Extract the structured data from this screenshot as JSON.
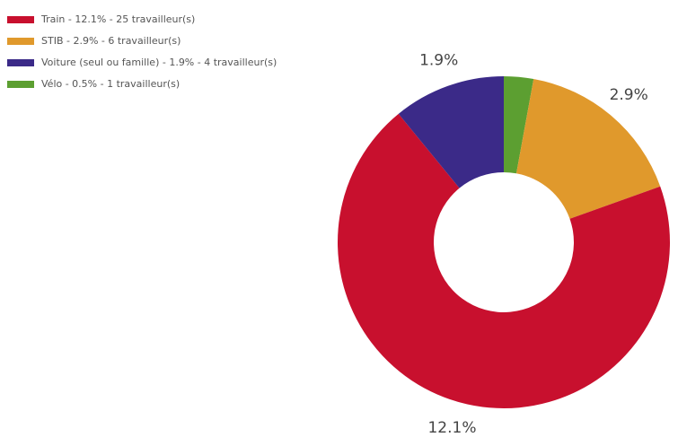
{
  "chart_data": {
    "type": "donut",
    "categories": [
      "Train - 12.1% - 25 travailleur(s)",
      "STIB - 2.9% - 6 travailleur(s)",
      "Voiture (seul ou famille) - 1.9% - 4 travailleur(s)",
      "Vélo - 0.5% - 1 travailleur(s)"
    ],
    "values": [
      12.1,
      2.9,
      1.9,
      0.5
    ],
    "value_labels": [
      "12.1%",
      "2.9%",
      "1.9%",
      null
    ],
    "colors": [
      "#c8102e",
      "#e0992c",
      "#3b2a88",
      "#5c9f31"
    ],
    "legend": "top-left"
  }
}
